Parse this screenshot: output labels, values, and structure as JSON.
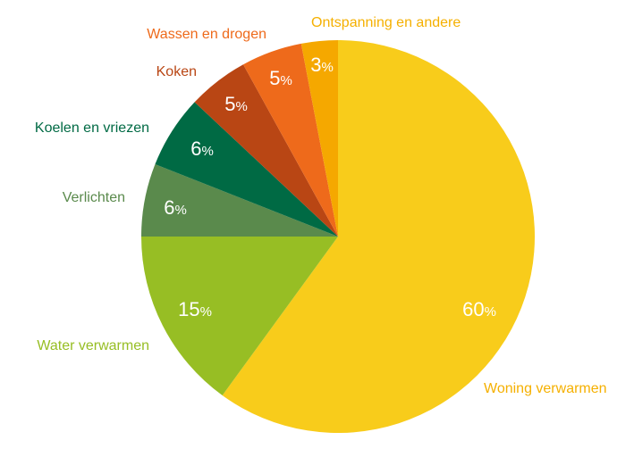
{
  "chart_data": {
    "type": "pie",
    "title": "",
    "slices": [
      {
        "label": "Woning verwarmen",
        "value": 60,
        "value_label": "60",
        "unit": "%",
        "color": "#F8CC1B"
      },
      {
        "label": "Water verwarmen",
        "value": 15,
        "value_label": "15",
        "unit": "%",
        "color": "#97BE24"
      },
      {
        "label": "Verlichten",
        "value": 6,
        "value_label": "6",
        "unit": "%",
        "color": "#5A8A4C"
      },
      {
        "label": "Koelen en vriezen",
        "value": 6,
        "value_label": "6",
        "unit": "%",
        "color": "#006A44"
      },
      {
        "label": "Koken",
        "value": 5,
        "value_label": "5",
        "unit": "%",
        "color": "#B94614"
      },
      {
        "label": "Wassen en drogen",
        "value": 5,
        "value_label": "5",
        "unit": "%",
        "color": "#EE6A1B"
      },
      {
        "label": "Ontspanning en andere",
        "value": 3,
        "value_label": "3",
        "unit": "%",
        "color": "#F5A800"
      }
    ],
    "label_colors": [
      "#F5B000",
      "#97BE24",
      "#5A8A4C",
      "#006A44",
      "#B94614",
      "#EE6A1B",
      "#F5B000"
    ],
    "legend": "labels next to slices"
  }
}
